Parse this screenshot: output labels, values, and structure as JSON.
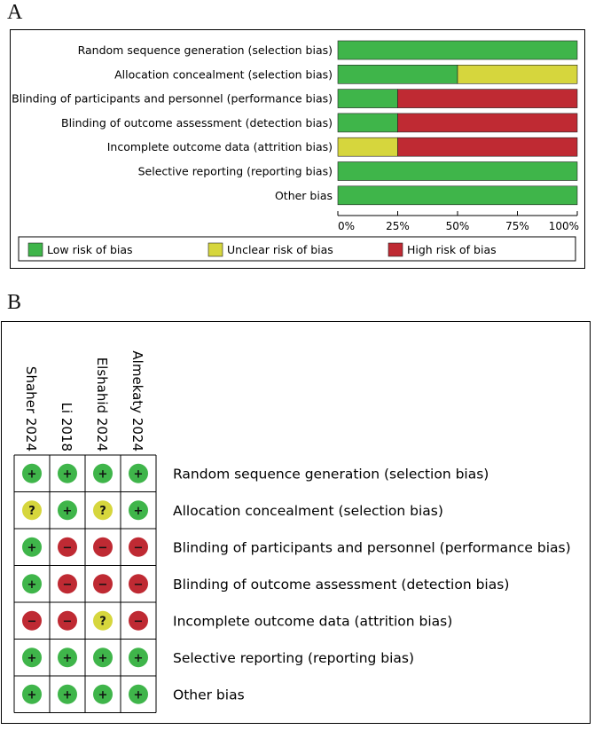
{
  "panel_a": {
    "label": "A"
  },
  "panel_b": {
    "label": "B"
  },
  "colors": {
    "low": "#3fb54a",
    "unclear": "#d6d63d",
    "high": "#bf2a33"
  },
  "chart_data": [
    {
      "type": "bar",
      "orientation": "horizontal-stacked-percent",
      "categories": [
        "Random sequence generation (selection bias)",
        "Allocation concealment (selection bias)",
        "Blinding of participants and personnel (performance bias)",
        "Blinding of outcome assessment (detection bias)",
        "Incomplete outcome data (attrition bias)",
        "Selective reporting (reporting bias)",
        "Other bias"
      ],
      "series": [
        {
          "name": "Low risk of bias",
          "key": "low",
          "values": [
            100,
            50,
            25,
            25,
            0,
            100,
            100
          ]
        },
        {
          "name": "Unclear risk of bias",
          "key": "unclear",
          "values": [
            0,
            50,
            0,
            0,
            25,
            0,
            0
          ]
        },
        {
          "name": "High risk of bias",
          "key": "high",
          "values": [
            0,
            0,
            75,
            75,
            75,
            0,
            0
          ]
        }
      ],
      "xlim": [
        0,
        100
      ],
      "xticks": [
        "0%",
        "25%",
        "50%",
        "75%",
        "100%"
      ],
      "legend": [
        "Low risk of bias",
        "Unclear risk of bias",
        "High risk of bias"
      ],
      "legend_position": "bottom"
    },
    {
      "type": "table",
      "studies": [
        "Shaher 2024",
        "Li 2018",
        "Elshahid 2024",
        "Almekaty 2024"
      ],
      "domains": [
        "Random sequence generation (selection bias)",
        "Allocation concealment (selection bias)",
        "Blinding of participants and personnel (performance bias)",
        "Blinding of outcome assessment (detection bias)",
        "Incomplete outcome data (attrition bias)",
        "Selective reporting (reporting bias)",
        "Other bias"
      ],
      "judgements": [
        [
          "low",
          "low",
          "low",
          "low"
        ],
        [
          "unclear",
          "low",
          "unclear",
          "low"
        ],
        [
          "low",
          "high",
          "high",
          "high"
        ],
        [
          "low",
          "high",
          "high",
          "high"
        ],
        [
          "high",
          "high",
          "unclear",
          "high"
        ],
        [
          "low",
          "low",
          "low",
          "low"
        ],
        [
          "low",
          "low",
          "low",
          "low"
        ]
      ],
      "symbols": {
        "low": "+",
        "unclear": "?",
        "high": "−"
      }
    }
  ]
}
